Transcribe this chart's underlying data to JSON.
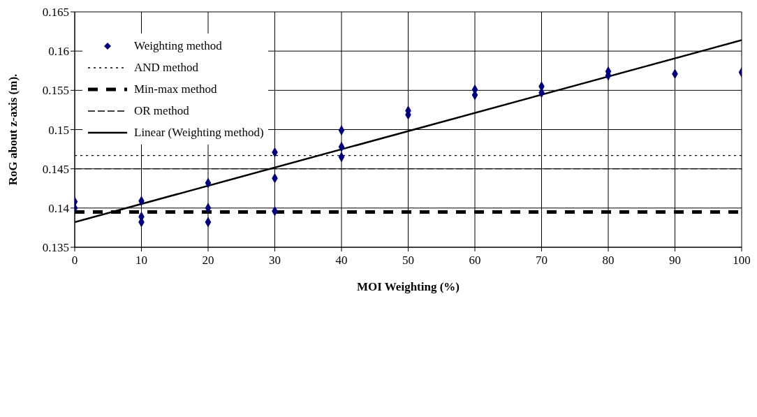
{
  "chart_data": {
    "type": "scatter",
    "xlabel": "MOI Weighting (%)",
    "ylabel": "RoG about z-axis (m).",
    "xlim": [
      0,
      100
    ],
    "xticks": [
      0,
      10,
      20,
      30,
      40,
      50,
      60,
      70,
      80,
      90,
      100
    ],
    "ylim": [
      0.135,
      0.165
    ],
    "yticks": [
      0.135,
      0.14,
      0.145,
      0.15,
      0.155,
      0.16,
      0.165
    ],
    "grid": true,
    "legend": "top left",
    "series": [
      {
        "name": "Weighting method",
        "color": "#000080",
        "marker": "diamond",
        "x": [
          0,
          0,
          10,
          10,
          10,
          20,
          20,
          20,
          30,
          30,
          30,
          40,
          40,
          40,
          50,
          50,
          60,
          60,
          70,
          70,
          80,
          80,
          90,
          100
        ],
        "values": [
          0.1408,
          0.14,
          0.1409,
          0.1389,
          0.1382,
          0.1432,
          0.14,
          0.1382,
          0.1471,
          0.1438,
          0.1396,
          0.1499,
          0.1478,
          0.1465,
          0.1524,
          0.1519,
          0.1551,
          0.1544,
          0.1555,
          0.1547,
          0.1574,
          0.1569,
          0.1571,
          0.1573
        ]
      },
      {
        "name": "Linear (Weighting method)",
        "type": "line",
        "color": "#000000",
        "marker": "none",
        "line_style": "solid",
        "x": [
          0,
          100
        ],
        "values": [
          0.1382,
          0.1614
        ]
      }
    ],
    "ref_lines": [
      {
        "axis": "y",
        "value": 0.1467,
        "label": "AND method",
        "color": "#000000",
        "line_style": "dotted"
      },
      {
        "axis": "y",
        "value": 0.1395,
        "label": "Min-max method",
        "color": "#000000",
        "line_style": "dashed"
      },
      {
        "axis": "y",
        "value": 0.145,
        "label": "OR method",
        "color": "#000000",
        "line_style": "dashed"
      }
    ]
  }
}
